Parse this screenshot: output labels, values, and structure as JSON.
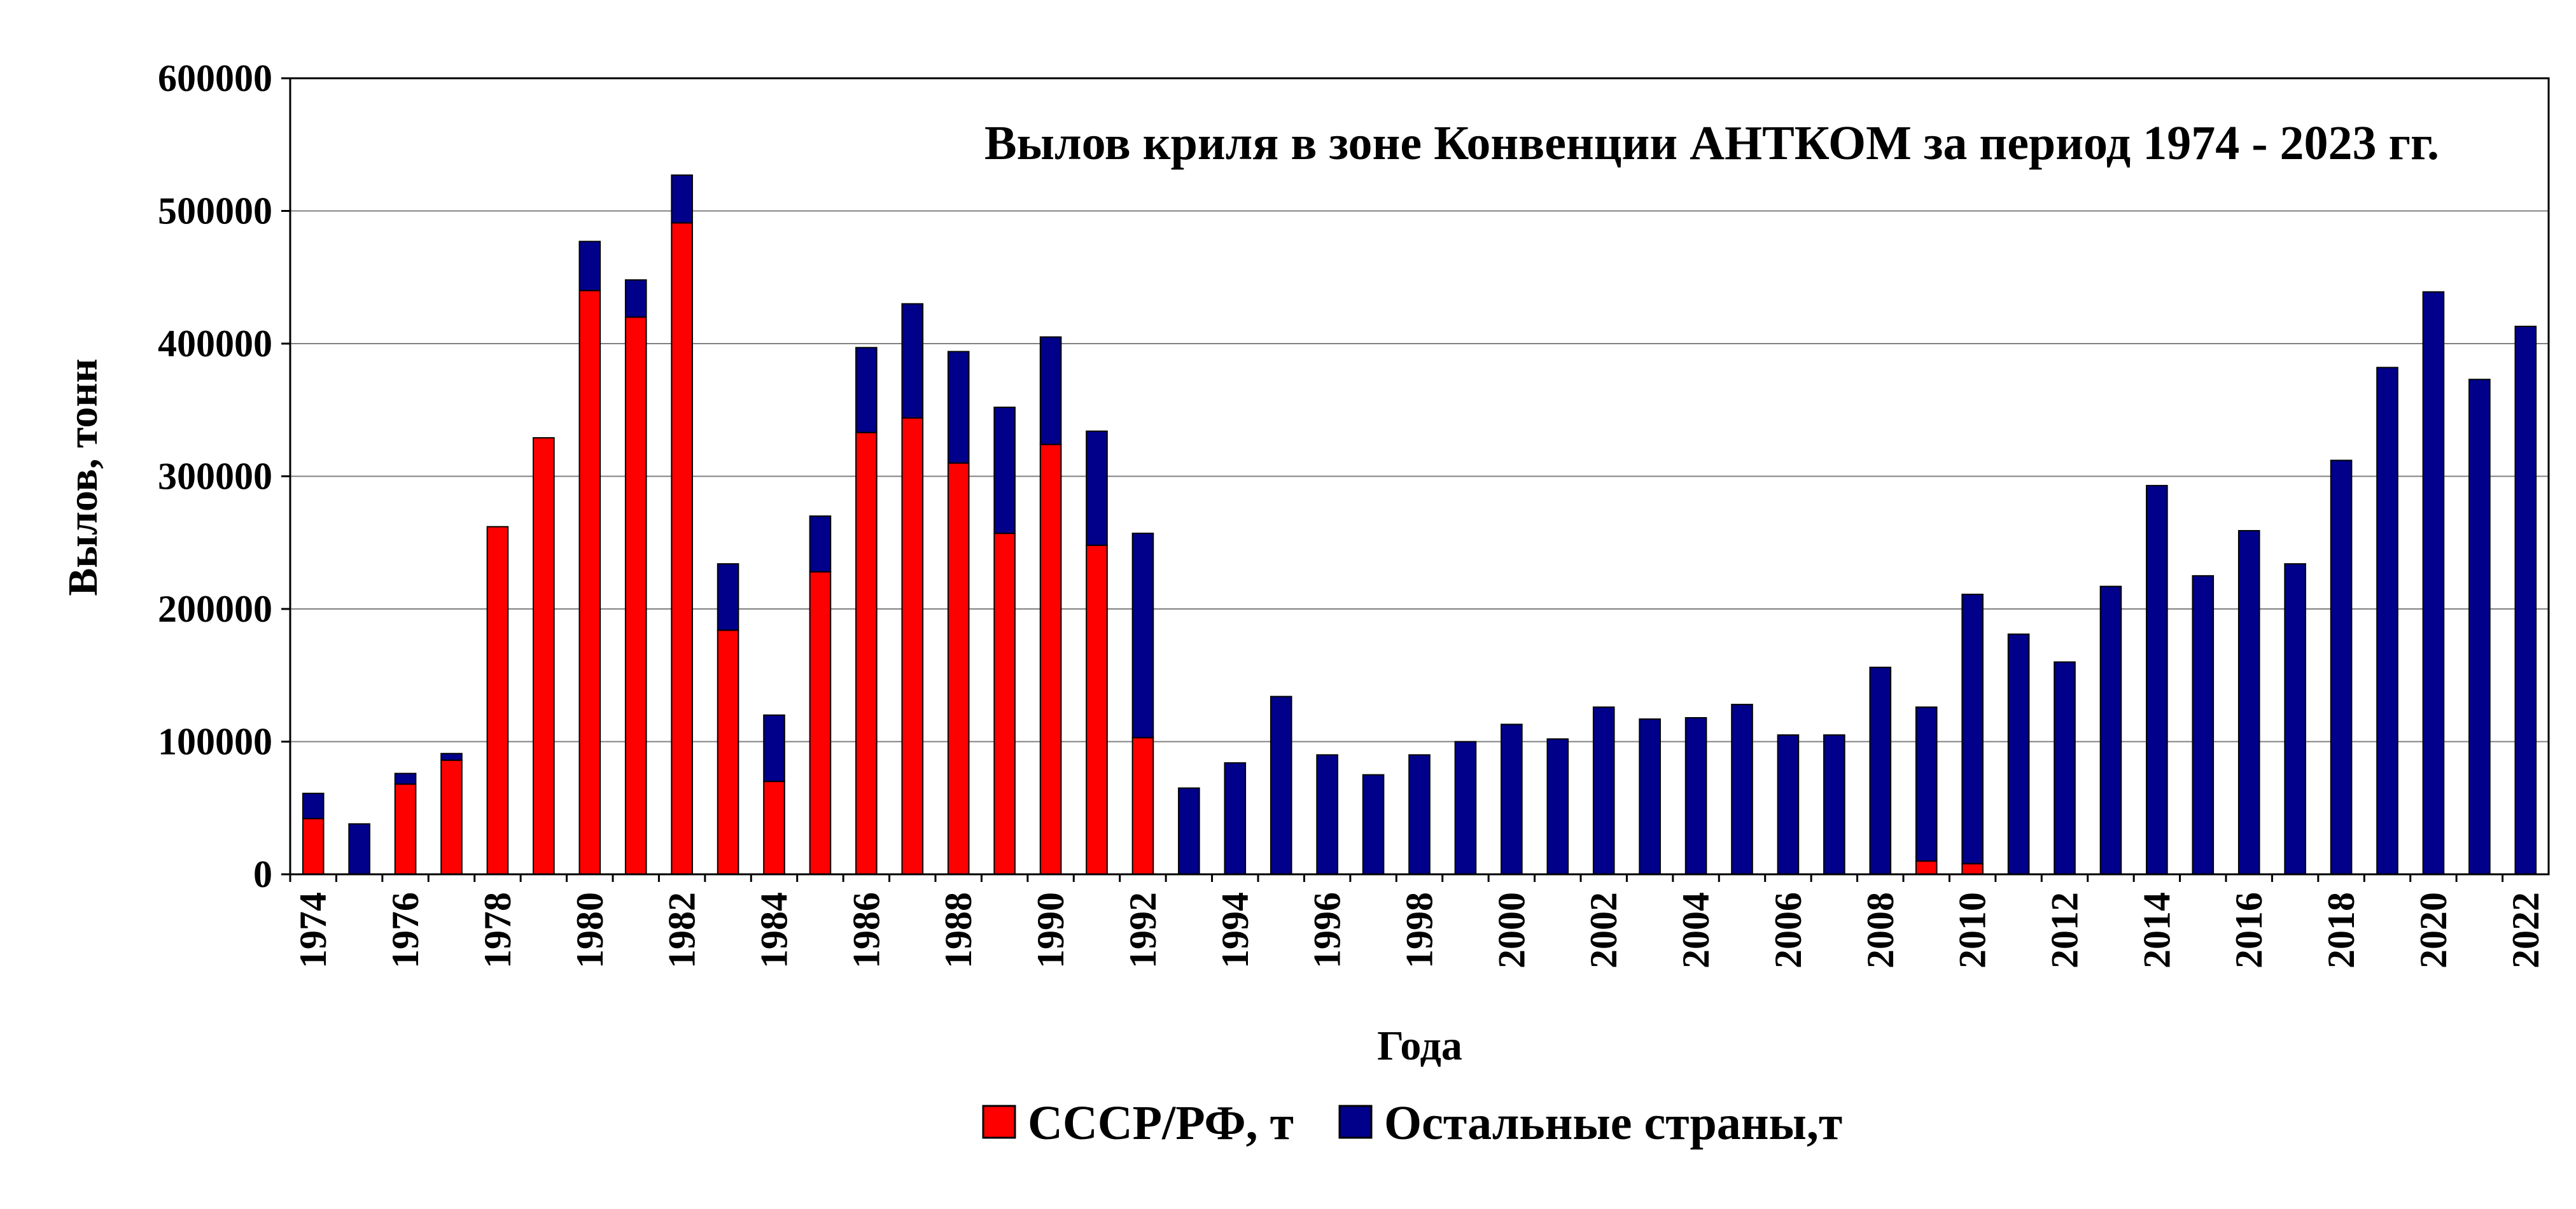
{
  "chart_data": {
    "type": "bar",
    "stacked": true,
    "title": "Вылов криля в зоне Конвенции АНТКОМ за период 1974 - 2023 гг.",
    "xlabel": "Года",
    "ylabel": "Вылов, тонн",
    "ylim": [
      0,
      600000
    ],
    "yticks": [
      0,
      100000,
      200000,
      300000,
      400000,
      500000,
      600000
    ],
    "grid": true,
    "legend_position": "bottom",
    "categories": [
      1974,
      1975,
      1976,
      1977,
      1978,
      1979,
      1980,
      1981,
      1982,
      1983,
      1984,
      1985,
      1986,
      1987,
      1988,
      1989,
      1990,
      1991,
      1992,
      1993,
      1994,
      1995,
      1996,
      1997,
      1998,
      1999,
      2000,
      2001,
      2002,
      2003,
      2004,
      2005,
      2006,
      2007,
      2008,
      2009,
      2010,
      2011,
      2012,
      2013,
      2014,
      2015,
      2016,
      2017,
      2018,
      2019,
      2020,
      2021,
      2022
    ],
    "xtick_labels": [
      "1974",
      "1976",
      "1978",
      "1980",
      "1982",
      "1984",
      "1986",
      "1988",
      "1990",
      "1992",
      "1994",
      "1996",
      "1998",
      "2000",
      "2002",
      "2004",
      "2006",
      "2008",
      "2010",
      "2012",
      "2014",
      "2016",
      "2018",
      "2020",
      "2022"
    ],
    "series": [
      {
        "name": "СССР/РФ, т",
        "color": "#ff0000",
        "values": [
          42000,
          0,
          68000,
          86000,
          262000,
          329000,
          440000,
          420000,
          491000,
          184000,
          70000,
          228000,
          333000,
          344000,
          310000,
          257000,
          324000,
          248000,
          103000,
          0,
          0,
          0,
          0,
          0,
          0,
          0,
          0,
          0,
          0,
          0,
          0,
          0,
          0,
          0,
          0,
          10000,
          8000,
          0,
          0,
          0,
          0,
          0,
          0,
          0,
          0,
          0,
          0,
          0,
          0
        ]
      },
      {
        "name": "Остальные страны,т",
        "color": "#00008b",
        "values": [
          19000,
          38000,
          8000,
          5000,
          0,
          0,
          37000,
          28000,
          36000,
          50000,
          50000,
          42000,
          64000,
          86000,
          84000,
          95000,
          81000,
          86000,
          154000,
          65000,
          84000,
          134000,
          90000,
          75000,
          90000,
          100000,
          113000,
          102000,
          126000,
          117000,
          118000,
          128000,
          105000,
          105000,
          156000,
          116000,
          203000,
          181000,
          160000,
          217000,
          293000,
          225000,
          259000,
          234000,
          312000,
          382000,
          439000,
          373000,
          413000
        ]
      }
    ]
  }
}
